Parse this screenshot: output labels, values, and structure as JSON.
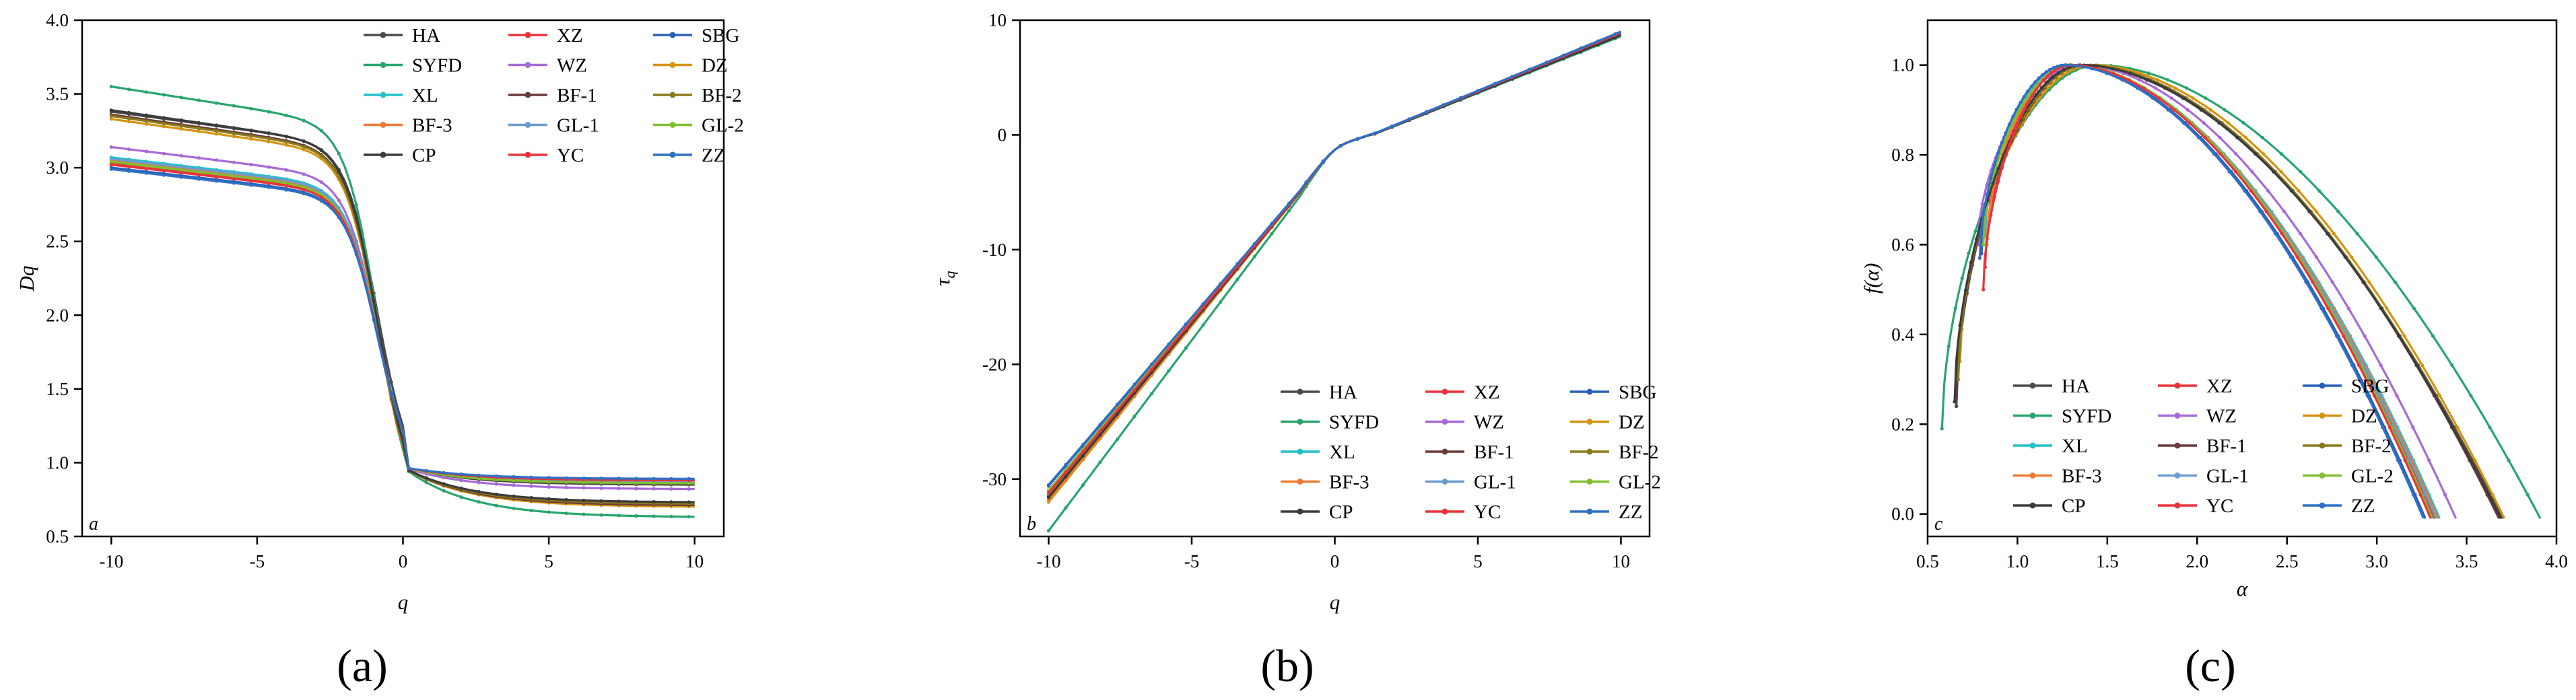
{
  "figure_caption_labels": [
    "(a)",
    "(b)",
    "(c)"
  ],
  "series_colors": {
    "HA": "#4a4a4a",
    "XZ": "#e8343a",
    "SBG": "#2a5fb8",
    "SYFD": "#27a56e",
    "WZ": "#a66ad6",
    "DZ": "#d49410",
    "XL": "#22c1c9",
    "BF-1": "#6b3a3a",
    "BF-2": "#8a7a1c",
    "BF-3": "#ee7a33",
    "GL-1": "#6b9bd0",
    "GL-2": "#7fbf2e",
    "CP": "#3b3b3b",
    "YC": "#e8343a",
    "ZZ": "#2f6fc4"
  },
  "chart_data": [
    {
      "type": "line",
      "panel": "a",
      "caption": "(a)",
      "panel_letter": "a",
      "xlabel": "q",
      "ylabel": "Dq",
      "xlim": [
        -11,
        11
      ],
      "ylim": [
        0.5,
        4.0
      ],
      "xticks": [
        -10,
        -5,
        0,
        5,
        10
      ],
      "xtick_labels": [
        "-10",
        "-5",
        "0",
        "5",
        "10"
      ],
      "yticks": [
        0.5,
        1.0,
        1.5,
        2.0,
        2.5,
        3.0,
        3.5,
        4.0
      ],
      "ytick_labels": [
        "0.5",
        "1.0",
        "1.5",
        "2.0",
        "2.5",
        "3.0",
        "3.5",
        "4.0"
      ],
      "grid": false,
      "legend_position": "top-right",
      "series": [
        {
          "name": "HA",
          "D_at_minus10": 3.38,
          "D_at_plus10": 0.85
        },
        {
          "name": "XZ",
          "D_at_minus10": 3.03,
          "D_at_plus10": 0.88
        },
        {
          "name": "SBG",
          "D_at_minus10": 3.0,
          "D_at_plus10": 0.88
        },
        {
          "name": "SYFD",
          "D_at_minus10": 3.55,
          "D_at_plus10": 0.63
        },
        {
          "name": "WZ",
          "D_at_minus10": 3.14,
          "D_at_plus10": 0.82
        },
        {
          "name": "DZ",
          "D_at_minus10": 3.33,
          "D_at_plus10": 0.7
        },
        {
          "name": "XL",
          "D_at_minus10": 3.07,
          "D_at_plus10": 0.87
        },
        {
          "name": "BF-1",
          "D_at_minus10": 3.36,
          "D_at_plus10": 0.71
        },
        {
          "name": "BF-2",
          "D_at_minus10": 3.35,
          "D_at_plus10": 0.72
        },
        {
          "name": "BF-3",
          "D_at_minus10": 3.05,
          "D_at_plus10": 0.86
        },
        {
          "name": "GL-1",
          "D_at_minus10": 3.06,
          "D_at_plus10": 0.87
        },
        {
          "name": "GL-2",
          "D_at_minus10": 3.04,
          "D_at_plus10": 0.86
        },
        {
          "name": "CP",
          "D_at_minus10": 3.39,
          "D_at_plus10": 0.73
        },
        {
          "name": "YC",
          "D_at_minus10": 3.02,
          "D_at_plus10": 0.88
        },
        {
          "name": "ZZ",
          "D_at_minus10": 2.99,
          "D_at_plus10": 0.89
        }
      ]
    },
    {
      "type": "line",
      "panel": "b",
      "caption": "(b)",
      "panel_letter": "b",
      "xlabel": "q",
      "ylabel": "τ",
      "ylabel_sub": "q",
      "xlim": [
        -11,
        11
      ],
      "ylim": [
        -35,
        10
      ],
      "xticks": [
        -10,
        -5,
        0,
        5,
        10
      ],
      "xtick_labels": [
        "-10",
        "-5",
        "0",
        "5",
        "10"
      ],
      "yticks": [
        -30,
        -20,
        -10,
        0,
        10
      ],
      "ytick_labels": [
        "-30",
        "-20",
        "-10",
        "0",
        "10"
      ],
      "grid": false,
      "legend_position": "bottom-right",
      "series": [
        {
          "name": "HA",
          "tau_at_minus10": -31.0,
          "tau_at_plus10": 8.9
        },
        {
          "name": "XZ",
          "tau_at_minus10": -31.4,
          "tau_at_plus10": 8.9
        },
        {
          "name": "SBG",
          "tau_at_minus10": -30.6,
          "tau_at_plus10": 9.0
        },
        {
          "name": "SYFD",
          "tau_at_minus10": -34.5,
          "tau_at_plus10": 8.6
        },
        {
          "name": "WZ",
          "tau_at_minus10": -31.0,
          "tau_at_plus10": 8.8
        },
        {
          "name": "DZ",
          "tau_at_minus10": -32.0,
          "tau_at_plus10": 8.7
        },
        {
          "name": "XL",
          "tau_at_minus10": -31.0,
          "tau_at_plus10": 8.9
        },
        {
          "name": "BF-1",
          "tau_at_minus10": -31.5,
          "tau_at_plus10": 8.7
        },
        {
          "name": "BF-2",
          "tau_at_minus10": -31.4,
          "tau_at_plus10": 8.7
        },
        {
          "name": "BF-3",
          "tau_at_minus10": -31.8,
          "tau_at_plus10": 8.9
        },
        {
          "name": "GL-1",
          "tau_at_minus10": -31.0,
          "tau_at_plus10": 8.9
        },
        {
          "name": "GL-2",
          "tau_at_minus10": -31.0,
          "tau_at_plus10": 8.9
        },
        {
          "name": "CP",
          "tau_at_minus10": -31.6,
          "tau_at_plus10": 8.7
        },
        {
          "name": "YC",
          "tau_at_minus10": -31.2,
          "tau_at_plus10": 8.9
        },
        {
          "name": "ZZ",
          "tau_at_minus10": -30.5,
          "tau_at_plus10": 9.0
        }
      ]
    },
    {
      "type": "line",
      "panel": "c",
      "caption": "(c)",
      "panel_letter": "c",
      "xlabel": "α",
      "ylabel": "f(α)",
      "xlim": [
        0.5,
        4.0
      ],
      "ylim": [
        -0.05,
        1.1
      ],
      "xticks": [
        0.5,
        1.0,
        1.5,
        2.0,
        2.5,
        3.0,
        3.5,
        4.0
      ],
      "xtick_labels": [
        "0.5",
        "1.0",
        "1.5",
        "2.0",
        "2.5",
        "3.0",
        "3.5",
        "4.0"
      ],
      "yticks": [
        0.0,
        0.2,
        0.4,
        0.6,
        0.8,
        1.0
      ],
      "ytick_labels": [
        "0.0",
        "0.2",
        "0.4",
        "0.6",
        "0.8",
        "1.0"
      ],
      "grid": false,
      "legend_position": "bottom-left",
      "series": [
        {
          "name": "HA",
          "alpha_min": 0.66,
          "f_at_alpha_min": 0.24,
          "alpha_peak": 1.35,
          "alpha_max": 3.7
        },
        {
          "name": "XZ",
          "alpha_min": 0.82,
          "f_at_alpha_min": 0.55,
          "alpha_peak": 1.3,
          "alpha_max": 3.32
        },
        {
          "name": "SBG",
          "alpha_min": 0.8,
          "f_at_alpha_min": 0.58,
          "alpha_peak": 1.28,
          "alpha_max": 3.27
        },
        {
          "name": "SYFD",
          "alpha_min": 0.58,
          "f_at_alpha_min": 0.19,
          "alpha_peak": 1.45,
          "alpha_max": 3.91
        },
        {
          "name": "WZ",
          "alpha_min": 0.78,
          "f_at_alpha_min": 0.6,
          "alpha_peak": 1.35,
          "alpha_max": 3.44
        },
        {
          "name": "DZ",
          "alpha_min": 0.68,
          "f_at_alpha_min": 0.34,
          "alpha_peak": 1.42,
          "alpha_max": 3.71
        },
        {
          "name": "XL",
          "alpha_min": 0.85,
          "f_at_alpha_min": 0.68,
          "alpha_peak": 1.3,
          "alpha_max": 3.35
        },
        {
          "name": "BF-1",
          "alpha_min": 0.66,
          "f_at_alpha_min": 0.26,
          "alpha_peak": 1.38,
          "alpha_max": 3.68
        },
        {
          "name": "BF-2",
          "alpha_min": 0.67,
          "f_at_alpha_min": 0.3,
          "alpha_peak": 1.38,
          "alpha_max": 3.69
        },
        {
          "name": "BF-3",
          "alpha_min": 0.83,
          "f_at_alpha_min": 0.6,
          "alpha_peak": 1.3,
          "alpha_max": 3.34
        },
        {
          "name": "GL-1",
          "alpha_min": 0.82,
          "f_at_alpha_min": 0.62,
          "alpha_peak": 1.3,
          "alpha_max": 3.33
        },
        {
          "name": "GL-2",
          "alpha_min": 0.81,
          "f_at_alpha_min": 0.6,
          "alpha_peak": 1.31,
          "alpha_max": 3.31
        },
        {
          "name": "CP",
          "alpha_min": 0.65,
          "f_at_alpha_min": 0.25,
          "alpha_peak": 1.36,
          "alpha_max": 3.69
        },
        {
          "name": "YC",
          "alpha_min": 0.81,
          "f_at_alpha_min": 0.5,
          "alpha_peak": 1.3,
          "alpha_max": 3.3
        },
        {
          "name": "ZZ",
          "alpha_min": 0.79,
          "f_at_alpha_min": 0.57,
          "alpha_peak": 1.27,
          "alpha_max": 3.26
        }
      ]
    }
  ],
  "legend_entries": [
    "HA",
    "XZ",
    "SBG",
    "SYFD",
    "WZ",
    "DZ",
    "XL",
    "BF-1",
    "BF-2",
    "BF-3",
    "GL-1",
    "GL-2",
    "CP",
    "YC",
    "ZZ"
  ]
}
